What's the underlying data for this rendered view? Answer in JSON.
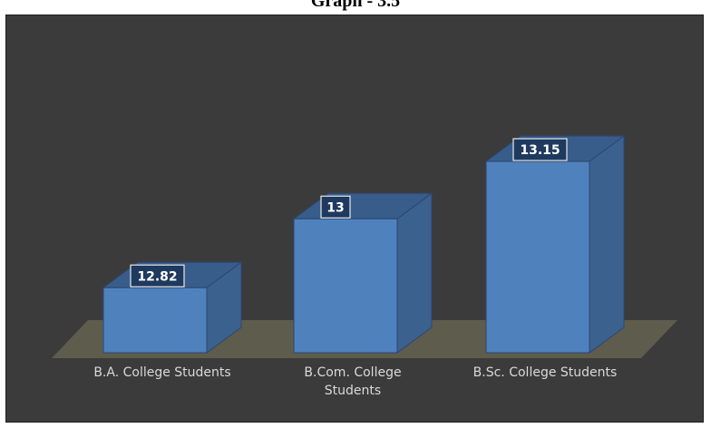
{
  "chart_data": {
    "type": "bar",
    "title": "Graph - 3.5",
    "categories": [
      "B.A. College Students",
      "B.Com. College Students",
      "B.Sc. College Students"
    ],
    "category_lines": [
      [
        "B.A. College Students"
      ],
      [
        "B.Com. College",
        "Students"
      ],
      [
        "B.Sc. College Students"
      ]
    ],
    "values": [
      12.82,
      13,
      13.15
    ],
    "value_labels": [
      "12.82",
      "13",
      "13.15"
    ],
    "style": "3d-column",
    "grid": false,
    "legend": "none"
  },
  "colors": {
    "background": "#3b3b3b",
    "floor": "#5e5c4c",
    "bar_front": "#4f81bd",
    "bar_side": "#3b618f",
    "bar_top": "#385d8a",
    "label_box": "#1f3a5f",
    "axis_text": "#d9d9d9"
  }
}
